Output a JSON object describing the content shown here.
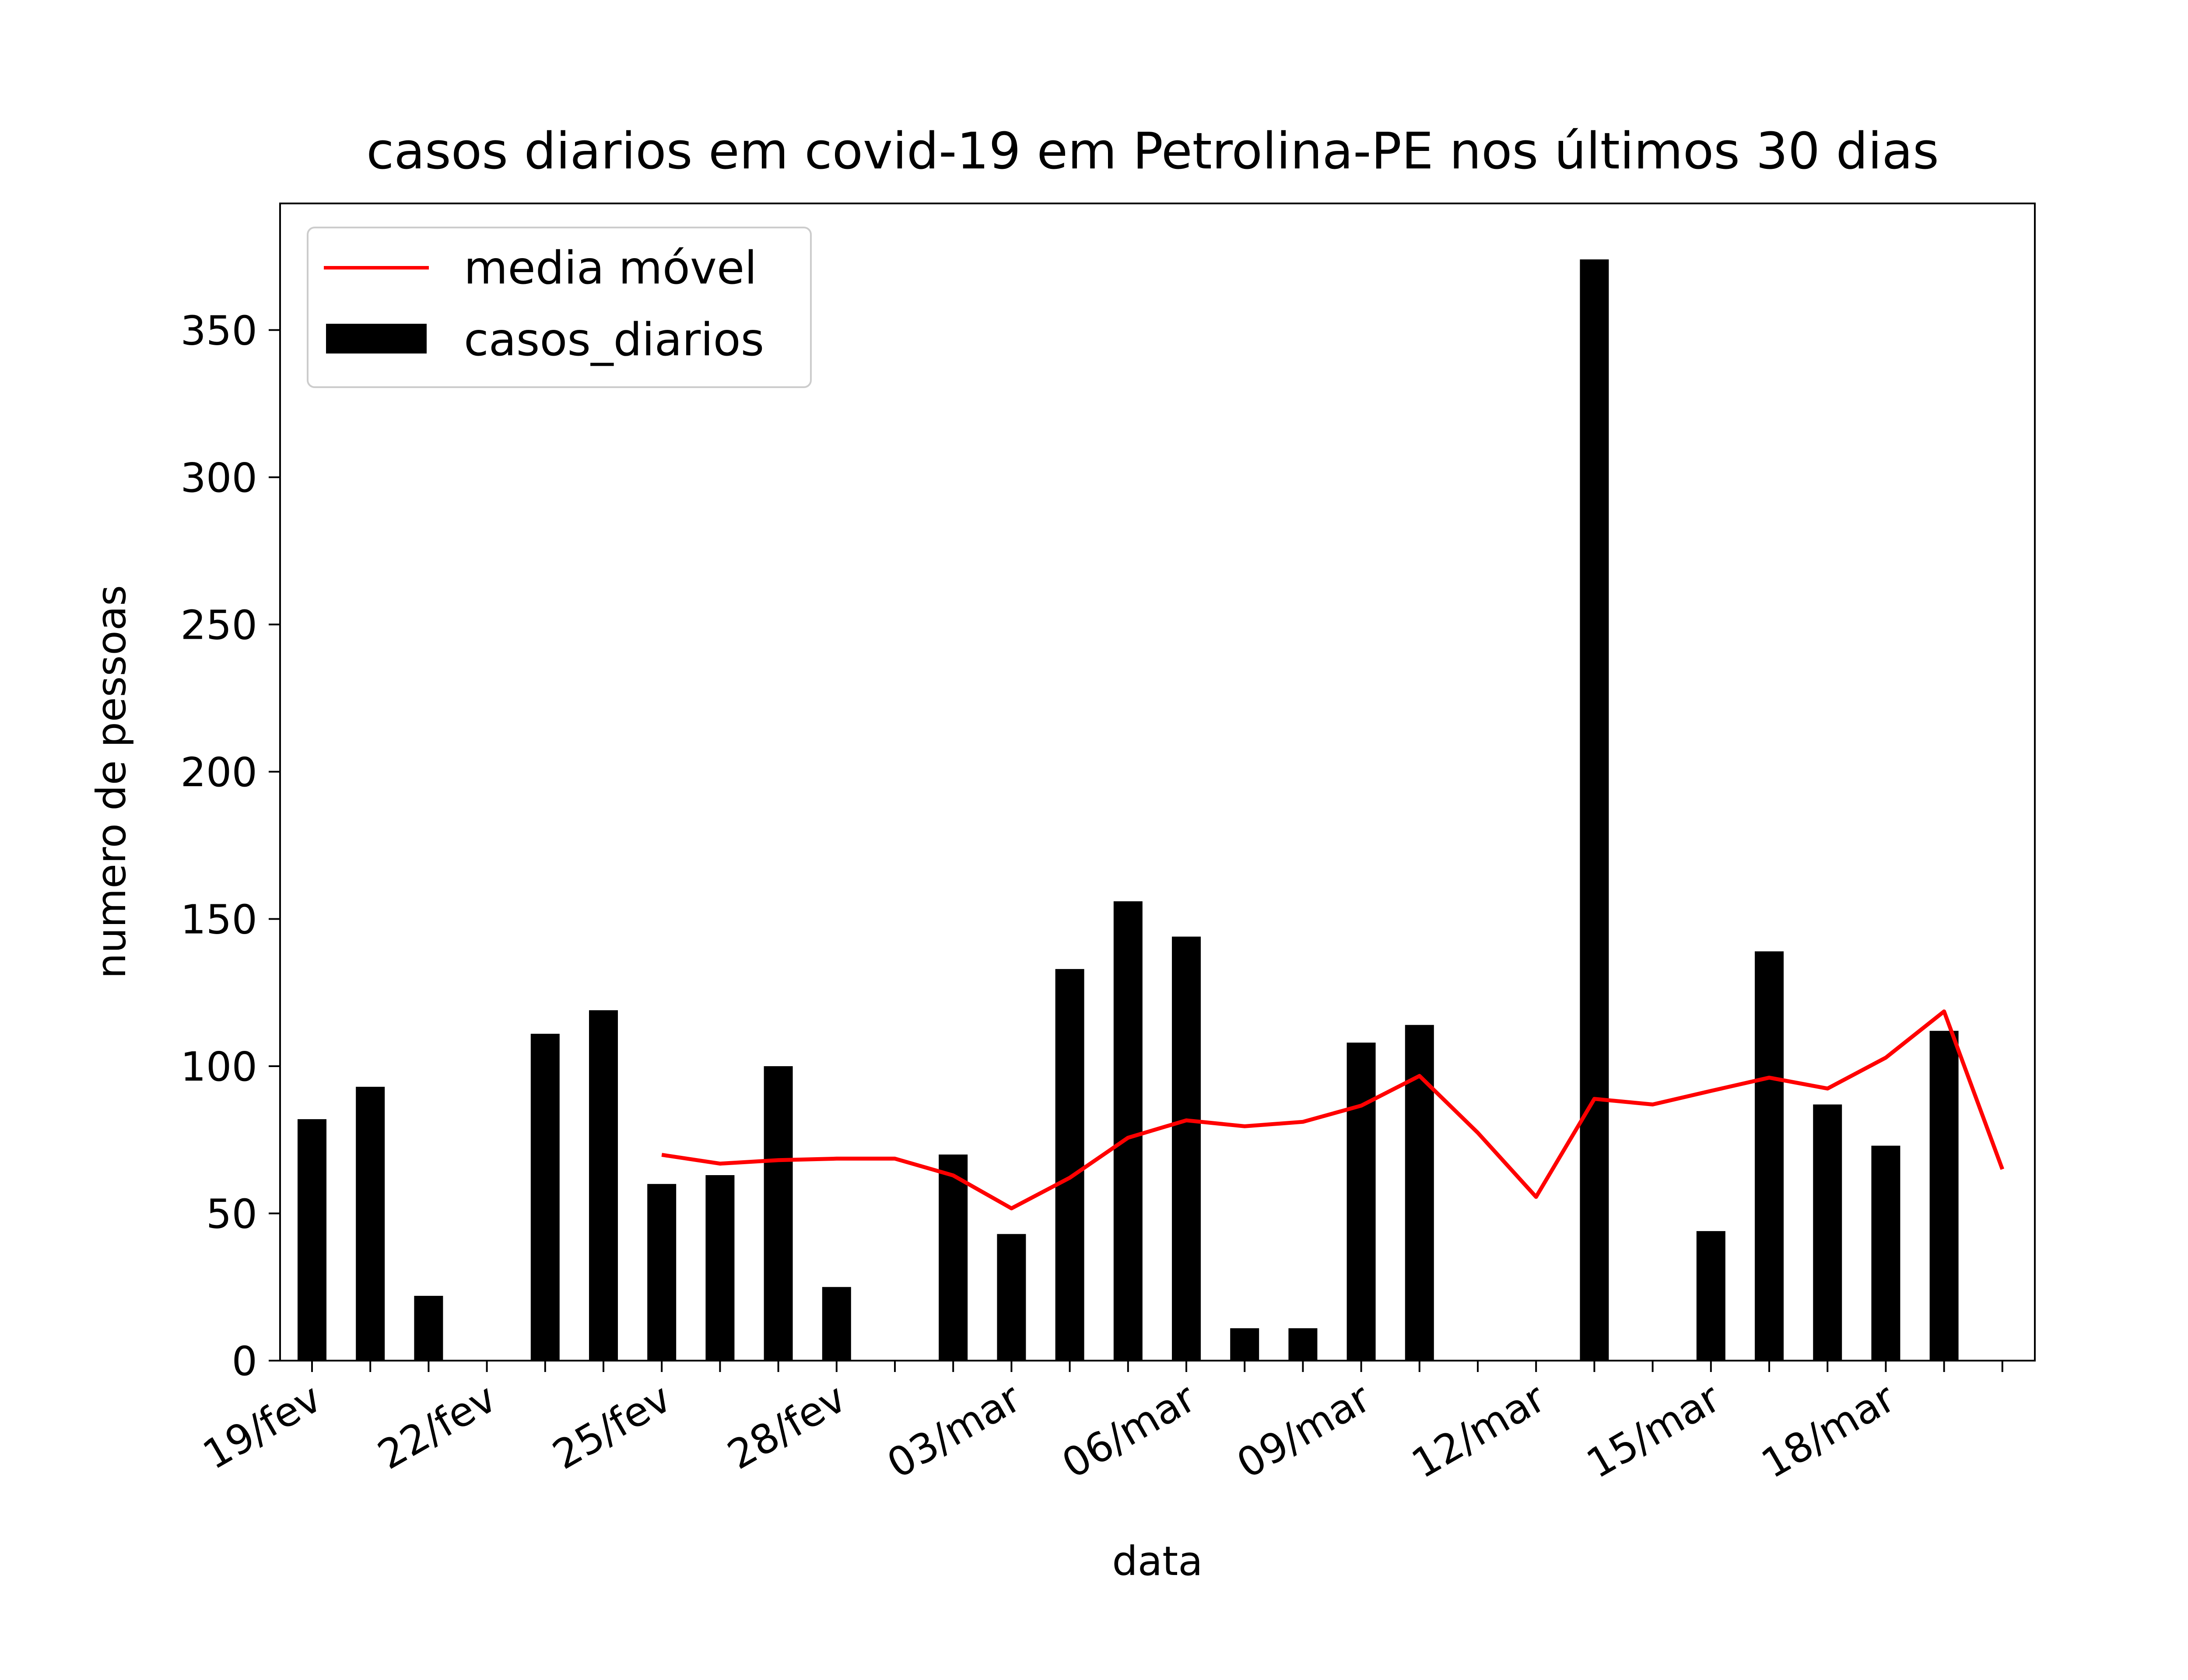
{
  "chart_data": {
    "type": "bar",
    "title": "casos diarios em covid-19 em Petrolina-PE nos últimos 30 dias",
    "xlabel": "data",
    "ylabel": "numero de pessoas",
    "ylim": [
      0,
      393
    ],
    "yticks": [
      0,
      50,
      100,
      150,
      200,
      250,
      300,
      350
    ],
    "xtick_labels": [
      "19/fev",
      "22/fev",
      "25/fev",
      "28/fev",
      "03/mar",
      "06/mar",
      "09/mar",
      "12/mar",
      "15/mar",
      "18/mar"
    ],
    "xtick_every": 3,
    "legend": {
      "placement": "upper-left",
      "entries": [
        "media móvel",
        "casos_diarios"
      ]
    },
    "grid": false,
    "colors": {
      "bars": "#000000",
      "line": "#ff0000"
    },
    "x": [
      "19/fev",
      "20/fev",
      "21/fev",
      "22/fev",
      "23/fev",
      "24/fev",
      "25/fev",
      "26/fev",
      "27/fev",
      "28/fev",
      "01/mar",
      "02/mar",
      "03/mar",
      "04/mar",
      "05/mar",
      "06/mar",
      "07/mar",
      "08/mar",
      "09/mar",
      "10/mar",
      "11/mar",
      "12/mar",
      "13/mar",
      "14/mar",
      "15/mar",
      "16/mar",
      "17/mar",
      "18/mar",
      "19/mar",
      "20/mar"
    ],
    "series": [
      {
        "name": "casos_diarios",
        "type": "bar",
        "values": [
          82,
          93,
          22,
          0,
          111,
          119,
          60,
          63,
          100,
          25,
          0,
          70,
          43,
          133,
          156,
          144,
          11,
          11,
          108,
          114,
          0,
          0,
          374,
          0,
          44,
          139,
          87,
          73,
          112,
          0
        ]
      },
      {
        "name": "media móvel",
        "type": "line",
        "values": [
          null,
          null,
          null,
          null,
          null,
          null,
          69.9,
          66.9,
          68.1,
          68.6,
          68.6,
          62.9,
          51.7,
          62.1,
          75.7,
          81.6,
          79.6,
          81.1,
          86.6,
          96.7,
          77.4,
          55.6,
          88.9,
          87.0,
          91.6,
          96.1,
          92.4,
          102.9,
          118.6,
          65.0
        ]
      }
    ]
  }
}
